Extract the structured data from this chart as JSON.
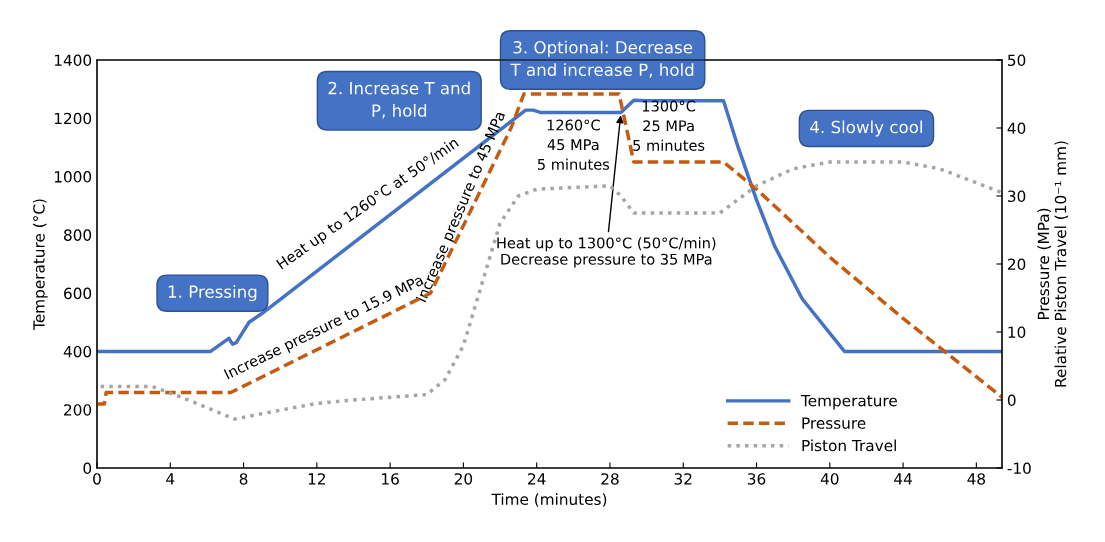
{
  "chart_data": {
    "type": "line",
    "xlabel": "Time (minutes)",
    "ylabel": "Temperature (°C)",
    "y2label": "Pressure (MPa)\nRelative Piston Travel (10⁻¹ mm)",
    "xlim": [
      0,
      49.4
    ],
    "xticks": [
      0,
      4,
      8,
      12,
      16,
      20,
      24,
      28,
      32,
      36,
      40,
      44,
      48
    ],
    "ylim": [
      0,
      1400
    ],
    "yticks": [
      0,
      200,
      400,
      600,
      800,
      1000,
      1200,
      1400
    ],
    "y2lim": [
      -10,
      50
    ],
    "y2ticks": [
      -10,
      0,
      10,
      20,
      30,
      40,
      50
    ],
    "grid": false,
    "legend": "bottom right",
    "series": [
      {
        "name": "Temperature",
        "color": "#4472c4",
        "line_style": "solid",
        "x": [
          0,
          6.2,
          7.2,
          7.4,
          7.6,
          8.3,
          9,
          23.4,
          23.8,
          24.2,
          28.6,
          29.3,
          30,
          34.2,
          35,
          36,
          37,
          38.5,
          40.8,
          49.4
        ],
        "values": [
          400,
          400,
          445,
          425,
          430,
          500,
          530,
          1228,
          1228,
          1220,
          1220,
          1262,
          1260,
          1260,
          1100,
          920,
          760,
          580,
          400,
          400
        ]
      },
      {
        "name": "Pressure",
        "color": "#c55a11",
        "line_style": "dashed",
        "axis": "y2",
        "x": [
          0,
          0.4,
          0.5,
          7.3,
          18.2,
          22.6,
          23.3,
          28.5,
          29.3,
          34.2,
          36,
          40,
          44,
          49.4
        ],
        "values": [
          -0.6,
          -0.6,
          1.1,
          1.1,
          15.7,
          40,
          45,
          45,
          35,
          35,
          31,
          21,
          12,
          0.4
        ]
      },
      {
        "name": "Piston Travel",
        "color": "#a5a5a5",
        "line_style": "dotted",
        "axis": "y2",
        "x": [
          0.2,
          3,
          5,
          7.5,
          10,
          12,
          14,
          18,
          19,
          20,
          21,
          22,
          23,
          24,
          28,
          28.6,
          29.3,
          34,
          35,
          36,
          38,
          40,
          44,
          46,
          49.4
        ],
        "values": [
          2,
          2,
          0,
          -2.8,
          -1.5,
          -0.5,
          0,
          0.8,
          3,
          8,
          17,
          26,
          30,
          31,
          31.5,
          30,
          27.5,
          27.5,
          29.5,
          31.5,
          34,
          35,
          35,
          34,
          30.5
        ]
      }
    ],
    "annotations": [
      "1. Pressing",
      "2. Increase T and\nP, hold",
      "3. Optional: Decrease\nT and increase P, hold",
      "4. Slowly cool",
      "Heat up to 1260°C at 50°/min",
      "Increase pressure to 15.9 MPa",
      "Increase pressure to 45 MPa",
      "1260°C\n45 MPa\n5 minutes",
      "1300°C\n25 MPa\n5 minutes",
      {
        "text": "Heat up to 1300°C (50°C/min)\nDecrease pressure to 35 MPa",
        "x": 28.6,
        "y": 1220
      }
    ]
  }
}
